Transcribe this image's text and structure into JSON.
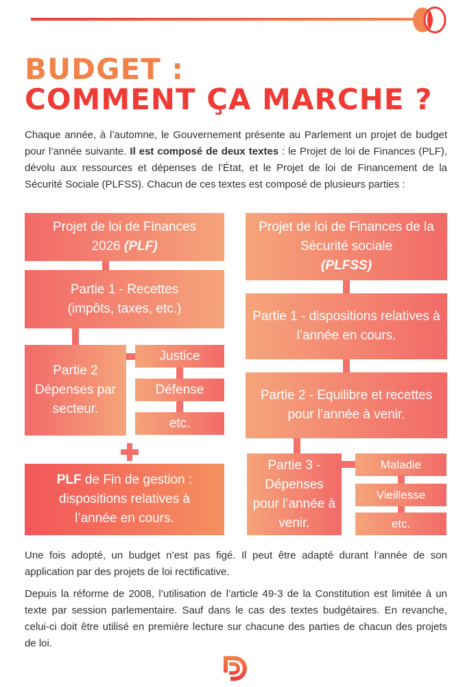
{
  "header": {
    "title_line1": "BUDGET :",
    "title_line2": "COMMENT ÇA MARCHE ?"
  },
  "intro": {
    "before_bold": "Chaque année, à l’automne, le Gouvernement présente au Parlement un projet de budget pour l’année suivante. ",
    "bold": "Il est composé de deux textes",
    "after_bold": " : le Projet de loi de Finances (PLF), dévolu aux ressources et dépenses de l’État, et le Projet de loi de Financement de la Sécurité Sociale (PLFSS). Chacun de ces textes est composé de plusieurs parties :"
  },
  "plf": {
    "title": "Projet de loi de Finances 2026 ",
    "title_abbr": "(PLF)",
    "partie1": "Partie 1 - Recettes (impôts, taxes, etc.)",
    "partie2": "Partie 2 Dépenses par secteur.",
    "sectors": [
      "Justice",
      "Défense",
      "etc."
    ],
    "plus": "+",
    "fin_gestion_bold": "PLF",
    "fin_gestion": " de Fin de gestion : dispositions relatives à l’année en cours."
  },
  "plfss": {
    "title": "Projet de loi de Finances de la Sécurité sociale",
    "title_abbr": "(PLFSS)",
    "partie1": "Partie 1 - dispositions relatives à l’année en cours.",
    "partie2": "Partie 2 - Equilibre et recettes pour l’année à venir.",
    "partie3": "Partie 3 - Dépenses pour l’année à venir.",
    "branches": [
      "Maladie",
      "Vieillesse",
      "etc."
    ]
  },
  "outro": {
    "p1": "Une fois adopté, un budget n’est pas figé. Il peut être adapté durant l’année de son application par des projets de loi rectificative.",
    "p2": "Depuis la réforme de 2008, l’utilisation de l’article 49-3 de la Constitution est limitée à un texte par session parlementaire. Sauf dans le cas des textes budgétaires. En revanche, celui-ci doit être utilisé en première lecture sur chacune des parties de chacun des projets de loi."
  },
  "colors": {
    "orange": "#f0834a",
    "red": "#f03a34",
    "box_pink": "#f26a68",
    "box_peach": "#f5a47a"
  }
}
